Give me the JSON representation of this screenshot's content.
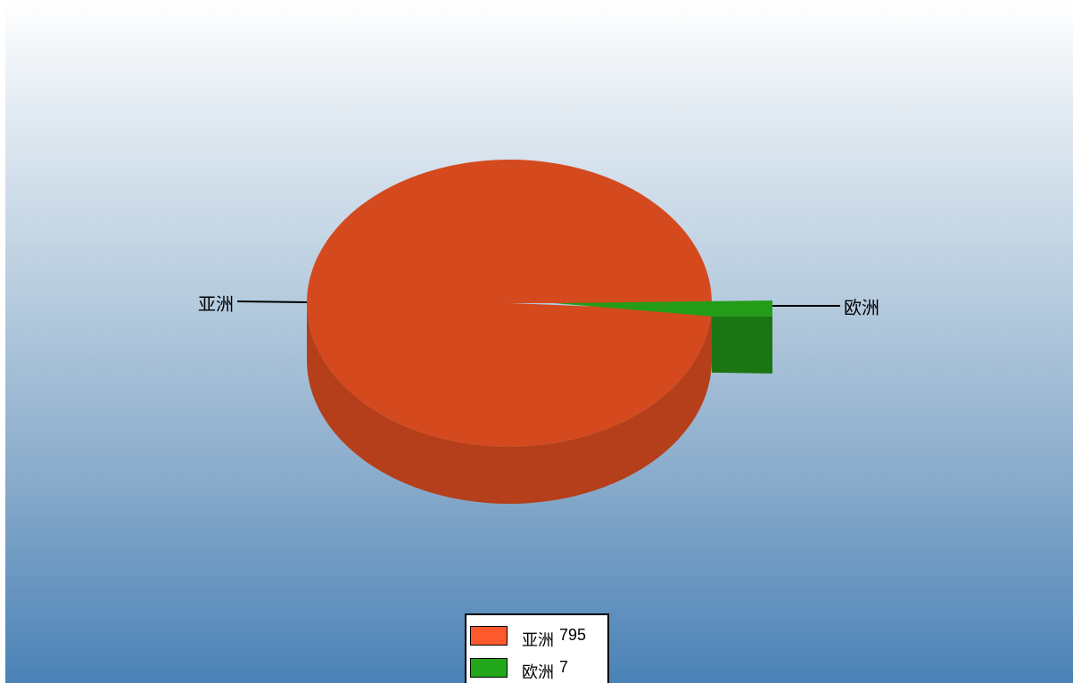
{
  "chart_data": {
    "type": "pie",
    "style": "3d",
    "categories": [
      "亚洲",
      "欧洲"
    ],
    "values": [
      795,
      7
    ],
    "colors": [
      "#d44a1e",
      "#249c18"
    ],
    "legend_swatch_colors": [
      "#fc5a2c",
      "#22a81a"
    ],
    "legend_placement": "bottom-center"
  },
  "legend": {
    "items": [
      {
        "name": "亚洲",
        "value": "795"
      },
      {
        "name": "欧洲",
        "value": "7"
      }
    ]
  },
  "labels": {
    "slice_0": "亚洲",
    "slice_1": "欧洲"
  }
}
